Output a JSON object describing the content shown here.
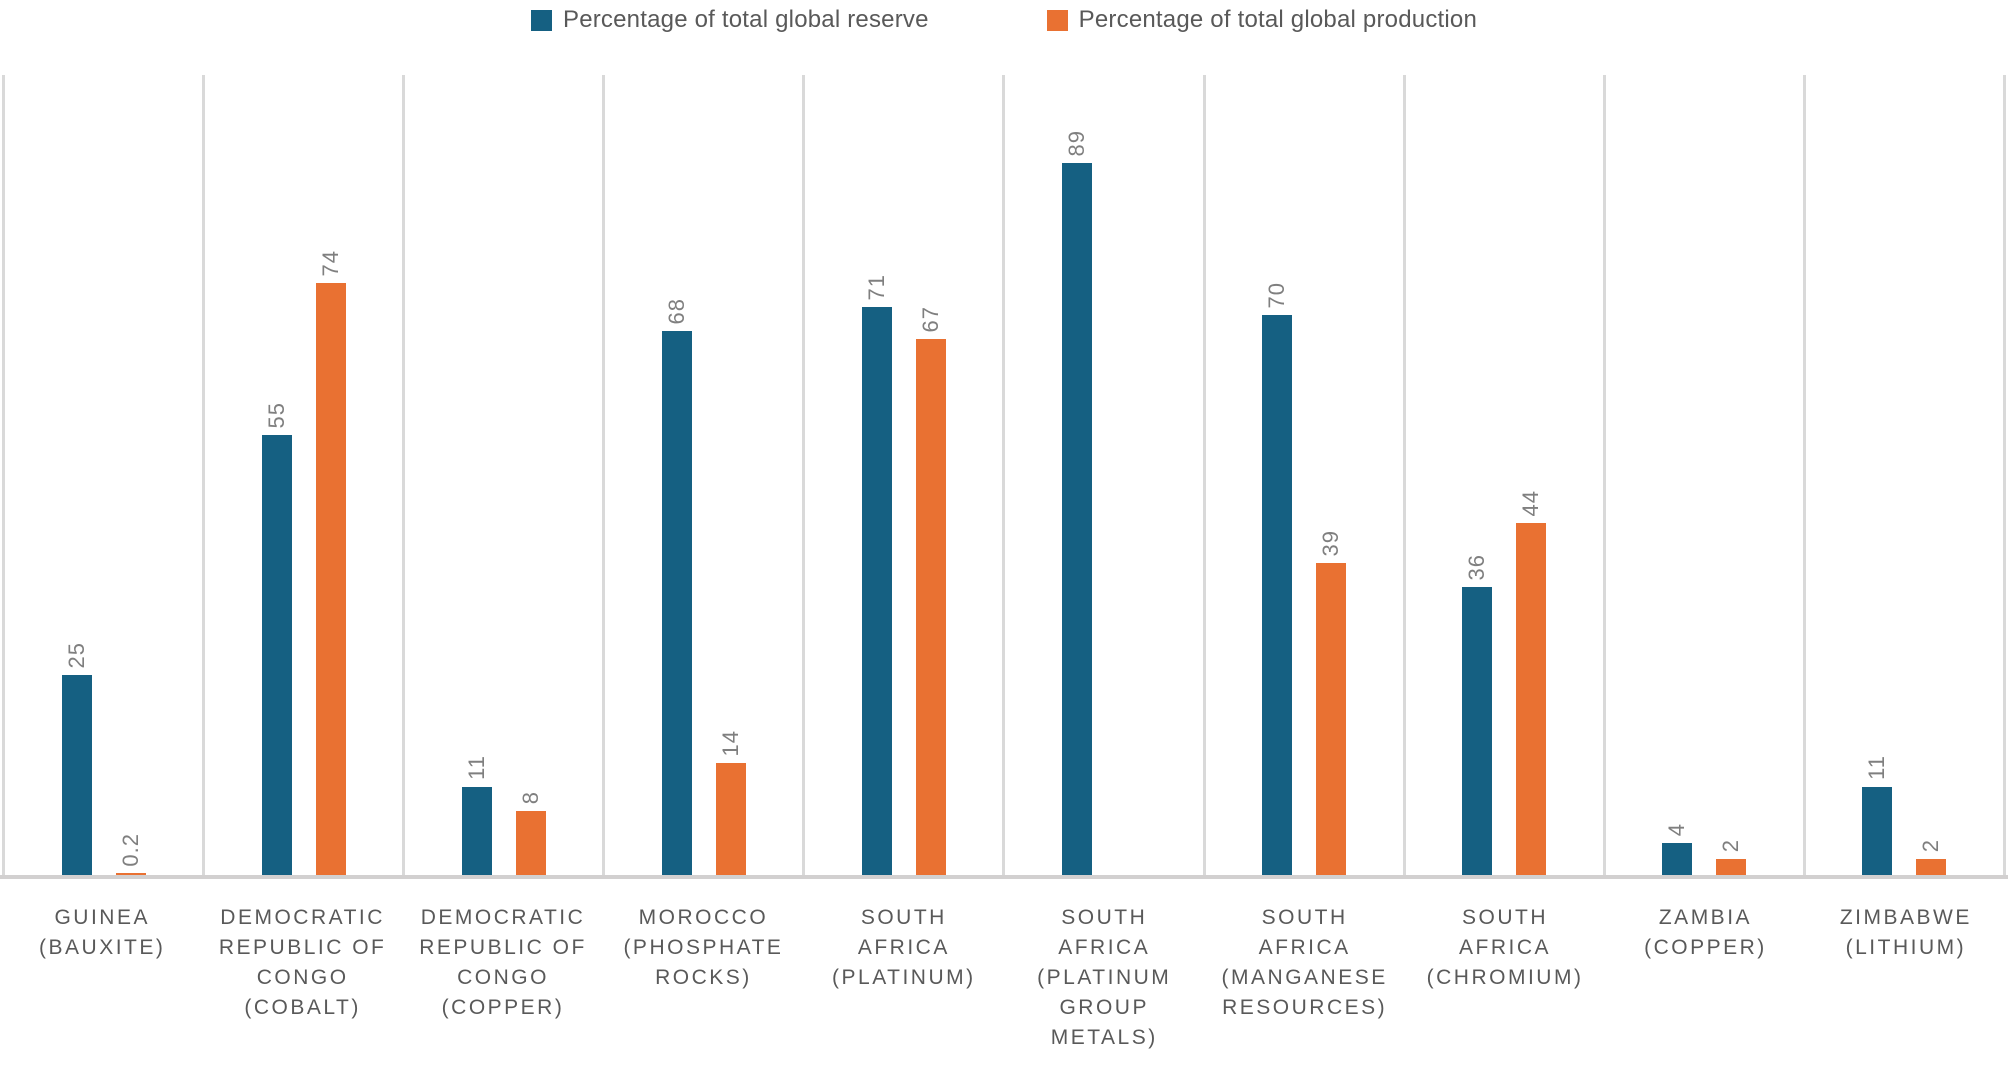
{
  "legend": [
    {
      "label": "Percentage of total global reserve",
      "color": "#156082"
    },
    {
      "label": "Percentage of total global production",
      "color": "#E97132"
    }
  ],
  "chart_data": {
    "type": "bar",
    "title": "",
    "xlabel": "",
    "ylabel": "",
    "ylim": [
      0,
      100
    ],
    "y_axis_visible": false,
    "gridlines": "vertical-category-separators",
    "legend_position": "top-center",
    "data_label_rotation": "vertical-bottom-to-top",
    "categories": [
      "GUINEA (BAUXITE)",
      "DEMOCRATIC REPUBLIC OF CONGO (COBALT)",
      "DEMOCRATIC REPUBLIC OF CONGO (COPPER)",
      "MOROCCO (PHOSPHATE ROCKS)",
      "SOUTH AFRICA (PLATINUM)",
      "SOUTH AFRICA (PLATINUM GROUP METALS)",
      "SOUTH AFRICA (MANGANESE RESOURCES)",
      "SOUTH AFRICA (CHROMIUM)",
      "ZAMBIA (COPPER)",
      "ZIMBABWE (LITHIUM)"
    ],
    "series": [
      {
        "name": "Percentage of total global reserve",
        "color": "#156082",
        "values": [
          25,
          55,
          11,
          68,
          71,
          89,
          70,
          36,
          4,
          11
        ]
      },
      {
        "name": "Percentage of total global production",
        "color": "#E97132",
        "values": [
          0.2,
          74,
          8,
          14,
          67,
          null,
          39,
          44,
          2,
          2
        ]
      }
    ],
    "colors": {
      "grid": "#D9D9D9",
      "axis": "#D2D0D0",
      "data_label": "#7F7F7F",
      "category_label": "#595959"
    }
  }
}
